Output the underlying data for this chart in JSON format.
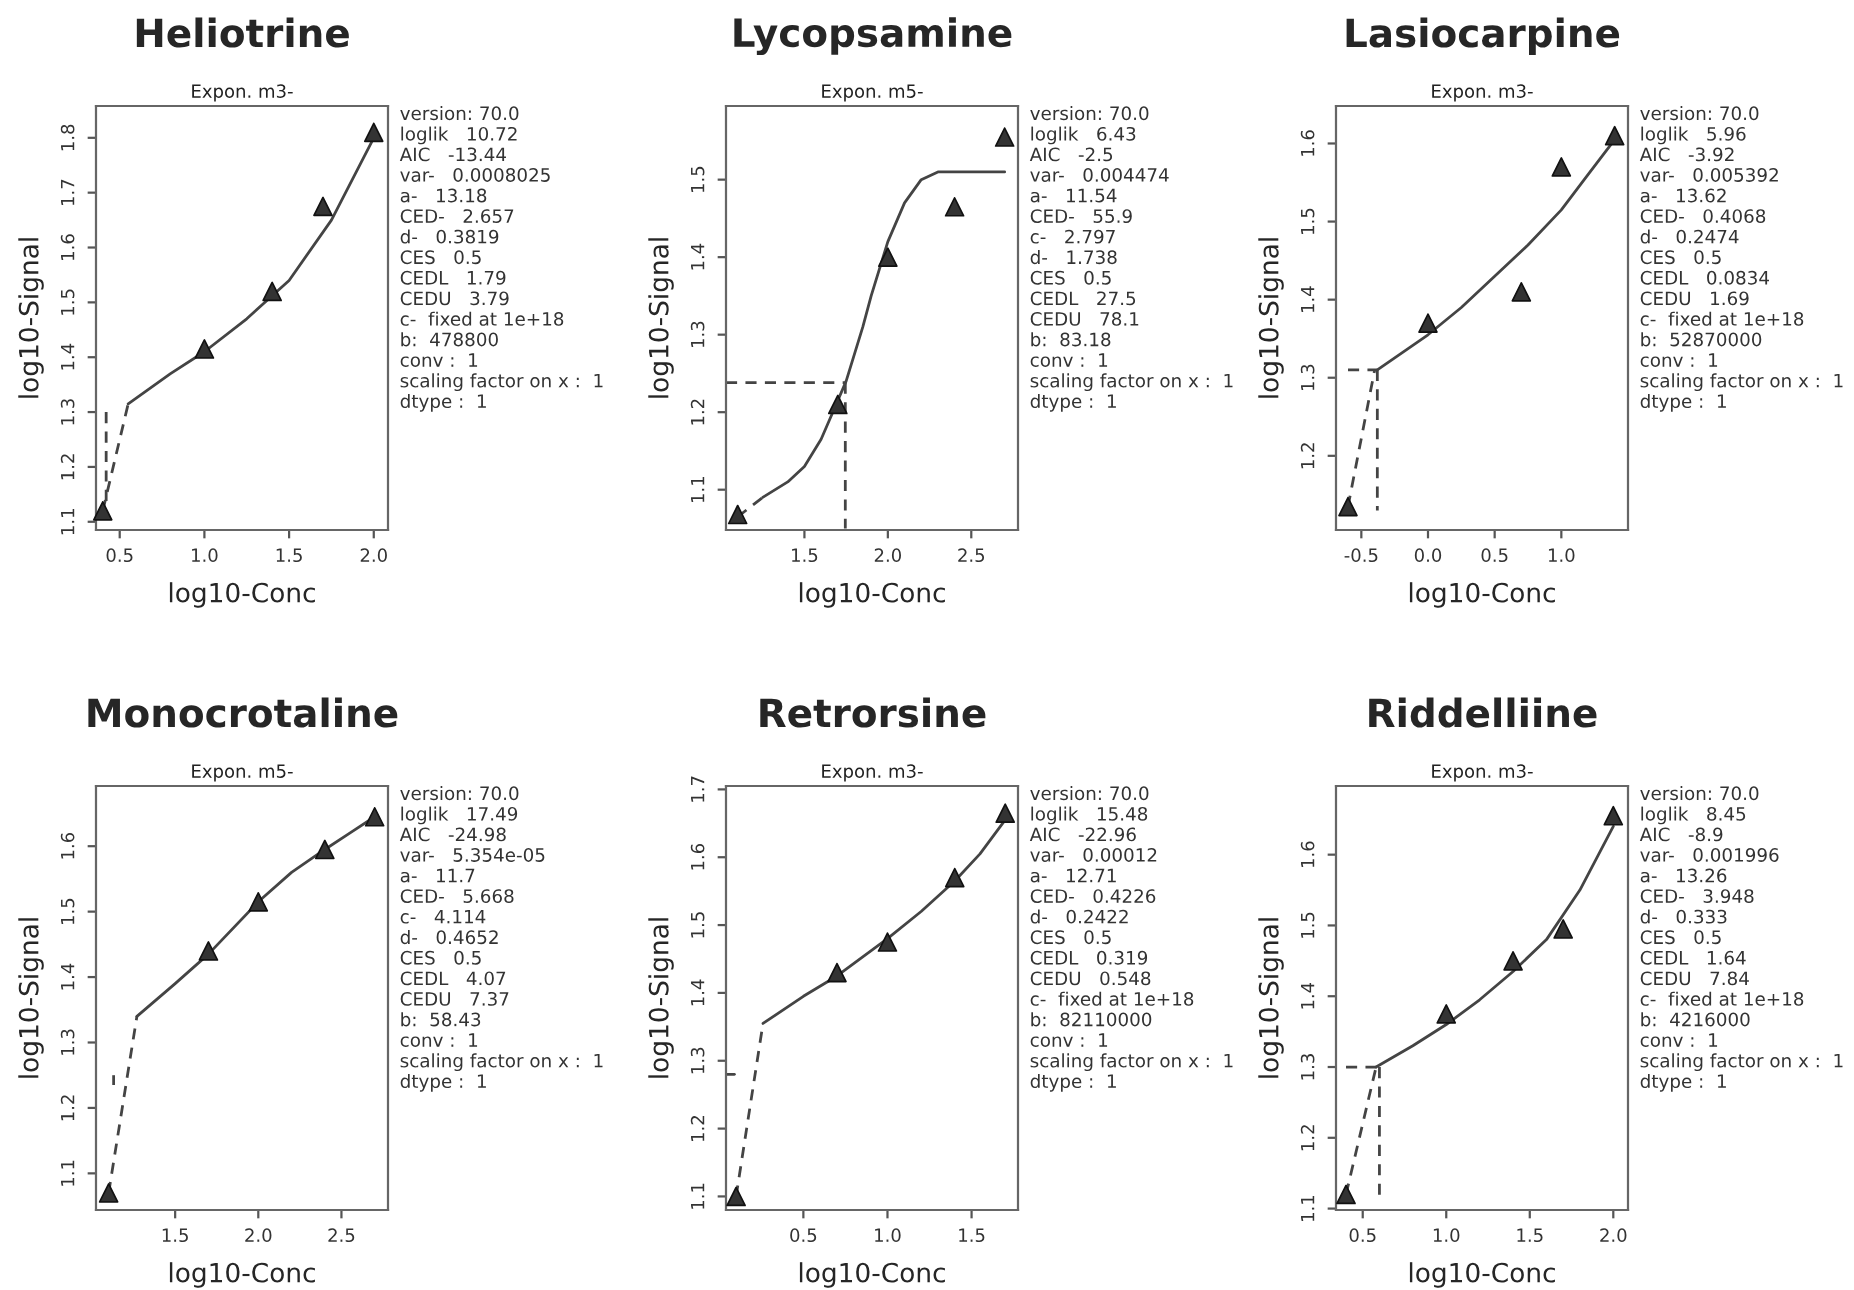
{
  "chart_data": [
    {
      "type": "scatter",
      "title": "Heliotrine",
      "subtitle": "Expon. m3-",
      "xlabel": "log10-Conc",
      "ylabel": "log10-Signal",
      "xlim": [
        0.36,
        2.084
      ],
      "ylim": [
        1.085,
        1.858
      ],
      "xticks": [
        0.5,
        {
          "value": 1,
          "label": "1.0"
        },
        1.5,
        {
          "value": 2,
          "label": "2.0"
        }
      ],
      "yticks": [
        1.1,
        1.2,
        1.3,
        1.4,
        1.5,
        1.6,
        1.7,
        1.8
      ],
      "grid": false,
      "series": [
        {
          "type": "scatter",
          "marker": "triangle",
          "color": "#333333",
          "x": [
            0.4,
            1.0,
            1.4,
            1.7,
            2.0
          ],
          "values": [
            1.12,
            1.415,
            1.52,
            1.675,
            1.81
          ]
        },
        {
          "type": "line",
          "line_style": "solid",
          "color": "#444444",
          "x": [
            0.55,
            0.8,
            1.0,
            1.25,
            1.5,
            1.75,
            2.0
          ],
          "values": [
            1.315,
            1.37,
            1.41,
            1.47,
            1.54,
            1.65,
            1.8
          ]
        },
        {
          "type": "line",
          "line_style": "dashed",
          "color": "#444444",
          "x": [
            0.4,
            0.55
          ],
          "values": [
            1.12,
            1.315
          ]
        },
        {
          "type": "line",
          "line_style": "dashed",
          "color": "#444444",
          "x": [
            0.42,
            0.42
          ],
          "values": [
            1.3,
            1.13
          ]
        }
      ],
      "annotations": [
        "version: 70.0",
        "loglik   10.72",
        "AIC   -13.44",
        "var-   0.0008025",
        "a-   13.18",
        "CED-   2.657",
        "d-   0.3819",
        "CES   0.5",
        "CEDL   1.79",
        "CEDU   3.79",
        "c-  fixed at 1e+18",
        "b:  478800",
        "conv :  1",
        "scaling factor on x :  1",
        "dtype :  1"
      ]
    },
    {
      "type": "scatter",
      "title": "Lycopsamine",
      "subtitle": "Expon. m5-",
      "xlabel": "log10-Conc",
      "ylabel": "log10-Signal",
      "xlim": [
        1.03,
        2.78
      ],
      "ylim": [
        1.048,
        1.595
      ],
      "xticks": [
        1.5,
        {
          "value": 2,
          "label": "2.0"
        },
        2.5
      ],
      "yticks": [
        1.1,
        1.2,
        1.3,
        1.4,
        1.5
      ],
      "grid": false,
      "series": [
        {
          "type": "scatter",
          "marker": "triangle",
          "color": "#333333",
          "x": [
            1.1,
            1.7,
            2.0,
            2.4,
            2.7
          ],
          "values": [
            1.068,
            1.21,
            1.4,
            1.465,
            1.555
          ]
        },
        {
          "type": "line",
          "line_style": "solid",
          "color": "#444444",
          "x": [
            1.25,
            1.4,
            1.5,
            1.6,
            1.65,
            1.75,
            1.85,
            1.9,
            2.0,
            2.1,
            2.2,
            2.3,
            2.4,
            2.7
          ],
          "values": [
            1.09,
            1.11,
            1.13,
            1.165,
            1.19,
            1.24,
            1.31,
            1.35,
            1.42,
            1.47,
            1.5,
            1.51,
            1.51,
            1.51
          ]
        },
        {
          "type": "line",
          "line_style": "dashed",
          "color": "#444444",
          "x": [
            1.1,
            1.25
          ],
          "values": [
            1.065,
            1.09
          ]
        },
        {
          "type": "line",
          "line_style": "dashed",
          "color": "#444444",
          "x": [
            1.03,
            1.745
          ],
          "values": [
            1.238,
            1.238
          ]
        },
        {
          "type": "line",
          "line_style": "dashed",
          "color": "#444444",
          "x": [
            1.745,
            1.745
          ],
          "values": [
            1.238,
            1.05
          ]
        }
      ],
      "annotations": [
        "version: 70.0",
        "loglik   6.43",
        "AIC   -2.5",
        "var-   0.004474",
        "a-   11.54",
        "CED-   55.9",
        "c-   2.797",
        "d-   1.738",
        "CES   0.5",
        "CEDL   27.5",
        "CEDU   78.1",
        "b:  83.18",
        "conv :  1",
        "scaling factor on x :  1",
        "dtype :  1"
      ]
    },
    {
      "type": "scatter",
      "title": "Lasiocarpine",
      "subtitle": "Expon. m3-",
      "xlabel": "log10-Conc",
      "ylabel": "log10-Signal",
      "xlim": [
        -0.69,
        1.5
      ],
      "ylim": [
        1.105,
        1.648
      ],
      "xticks": [
        -0.5,
        {
          "value": 0,
          "label": "0.0"
        },
        0.5,
        {
          "value": 1,
          "label": "1.0"
        }
      ],
      "yticks": [
        1.2,
        1.3,
        1.4,
        1.5,
        1.6
      ],
      "grid": false,
      "series": [
        {
          "type": "scatter",
          "marker": "triangle",
          "color": "#333333",
          "x": [
            -0.6,
            0.0,
            0.7,
            1.0,
            1.4
          ],
          "values": [
            1.135,
            1.37,
            1.41,
            1.57,
            1.61
          ]
        },
        {
          "type": "line",
          "line_style": "solid",
          "color": "#444444",
          "x": [
            -0.38,
            0.0,
            0.25,
            0.5,
            0.75,
            1.0,
            1.2,
            1.4
          ],
          "values": [
            1.31,
            1.355,
            1.39,
            1.43,
            1.47,
            1.515,
            1.56,
            1.605
          ]
        },
        {
          "type": "line",
          "line_style": "dashed",
          "color": "#444444",
          "x": [
            -0.6,
            -0.4
          ],
          "values": [
            1.135,
            1.31
          ]
        },
        {
          "type": "line",
          "line_style": "dashed",
          "color": "#444444",
          "x": [
            -0.6,
            -0.38
          ],
          "values": [
            1.31,
            1.31
          ]
        },
        {
          "type": "line",
          "line_style": "dashed",
          "color": "#444444",
          "x": [
            -0.38,
            -0.38
          ],
          "values": [
            1.31,
            1.13
          ]
        }
      ],
      "annotations": [
        "version: 70.0",
        "loglik   5.96",
        "AIC   -3.92",
        "var-   0.005392",
        "a-   13.62",
        "CED-   0.4068",
        "d-   0.2474",
        "CES   0.5",
        "CEDL   0.0834",
        "CEDU   1.69",
        "c-  fixed at 1e+18",
        "b:  52870000",
        "conv :  1",
        "scaling factor on x :  1",
        "dtype :  1"
      ]
    },
    {
      "type": "scatter",
      "title": "Monocrotaline",
      "subtitle": "Expon. m5-",
      "xlabel": "log10-Conc",
      "ylabel": "log10-Signal",
      "xlim": [
        1.024,
        2.78
      ],
      "ylim": [
        1.044,
        1.692
      ],
      "xticks": [
        1.5,
        {
          "value": 2,
          "label": "2.0"
        },
        2.5
      ],
      "yticks": [
        1.1,
        1.2,
        1.3,
        1.4,
        1.5,
        1.6
      ],
      "grid": false,
      "series": [
        {
          "type": "scatter",
          "marker": "triangle",
          "color": "#333333",
          "x": [
            1.1,
            1.7,
            2.0,
            2.4,
            2.7
          ],
          "values": [
            1.07,
            1.44,
            1.515,
            1.595,
            1.645
          ]
        },
        {
          "type": "line",
          "line_style": "solid",
          "color": "#444444",
          "x": [
            1.27,
            1.5,
            1.7,
            2.0,
            2.2,
            2.4,
            2.55,
            2.7
          ],
          "values": [
            1.34,
            1.39,
            1.435,
            1.515,
            1.56,
            1.595,
            1.62,
            1.645
          ]
        },
        {
          "type": "line",
          "line_style": "dashed",
          "color": "#444444",
          "x": [
            1.1,
            1.27
          ],
          "values": [
            1.07,
            1.34
          ]
        },
        {
          "type": "line",
          "line_style": "dashed",
          "color": "#444444",
          "x": [
            1.13,
            1.13
          ],
          "values": [
            1.235,
            1.25
          ]
        }
      ],
      "annotations": [
        "version: 70.0",
        "loglik   17.49",
        "AIC   -24.98",
        "var-   5.354e-05",
        "a-   11.7",
        "CED-   5.668",
        "c-   4.114",
        "d-   0.4652",
        "CES   0.5",
        "CEDL   4.07",
        "CEDU   7.37",
        "b:  58.43",
        "conv :  1",
        "scaling factor on x :  1",
        "dtype :  1"
      ]
    },
    {
      "type": "scatter",
      "title": "Retrorsine",
      "subtitle": "Expon. m3-",
      "xlabel": "log10-Conc",
      "ylabel": "log10-Signal",
      "xlim": [
        0.04,
        1.776
      ],
      "ylim": [
        1.08,
        1.705
      ],
      "xticks": [
        0.5,
        {
          "value": 1,
          "label": "1.0"
        },
        1.5
      ],
      "yticks": [
        1.1,
        1.2,
        1.3,
        1.4,
        1.5,
        1.6,
        1.7
      ],
      "grid": false,
      "series": [
        {
          "type": "scatter",
          "marker": "triangle",
          "color": "#333333",
          "x": [
            0.1,
            0.7,
            1.0,
            1.4,
            1.7
          ],
          "values": [
            1.1,
            1.43,
            1.475,
            1.57,
            1.665
          ]
        },
        {
          "type": "line",
          "line_style": "solid",
          "color": "#444444",
          "x": [
            0.26,
            0.5,
            0.7,
            1.0,
            1.2,
            1.4,
            1.55,
            1.7
          ],
          "values": [
            1.355,
            1.395,
            1.425,
            1.48,
            1.52,
            1.565,
            1.605,
            1.655
          ]
        },
        {
          "type": "line",
          "line_style": "dashed",
          "color": "#444444",
          "x": [
            0.1,
            0.26
          ],
          "values": [
            1.1,
            1.355
          ]
        },
        {
          "type": "line",
          "line_style": "solid",
          "color": "#444444",
          "x": [
            0.045,
            0.09
          ],
          "values": [
            1.28,
            1.28
          ]
        }
      ],
      "annotations": [
        "version: 70.0",
        "loglik   15.48",
        "AIC   -22.96",
        "var-   0.00012",
        "a-   12.71",
        "CED-   0.4226",
        "d-   0.2422",
        "CES   0.5",
        "CEDL   0.319",
        "CEDU   0.548",
        "c-  fixed at 1e+18",
        "b:  82110000",
        "conv :  1",
        "scaling factor on x :  1",
        "dtype :  1"
      ]
    },
    {
      "type": "scatter",
      "title": "Riddelliine",
      "subtitle": "Expon. m3-",
      "xlabel": "log10-Conc",
      "ylabel": "log10-Signal",
      "xlim": [
        0.34,
        2.088
      ],
      "ylim": [
        1.098,
        1.697
      ],
      "xticks": [
        0.5,
        {
          "value": 1,
          "label": "1.0"
        },
        1.5,
        {
          "value": 2,
          "label": "2.0"
        }
      ],
      "yticks": [
        1.1,
        1.2,
        1.3,
        1.4,
        1.5,
        1.6
      ],
      "grid": false,
      "series": [
        {
          "type": "scatter",
          "marker": "triangle",
          "color": "#333333",
          "x": [
            0.4,
            1.0,
            1.4,
            1.7,
            2.0
          ],
          "values": [
            1.12,
            1.375,
            1.45,
            1.495,
            1.655
          ]
        },
        {
          "type": "line",
          "line_style": "solid",
          "color": "#444444",
          "x": [
            0.58,
            0.8,
            1.0,
            1.2,
            1.4,
            1.6,
            1.8,
            2.0
          ],
          "values": [
            1.3,
            1.33,
            1.36,
            1.395,
            1.435,
            1.48,
            1.55,
            1.64
          ]
        },
        {
          "type": "line",
          "line_style": "dashed",
          "color": "#444444",
          "x": [
            0.4,
            0.58
          ],
          "values": [
            1.12,
            1.3
          ]
        },
        {
          "type": "line",
          "line_style": "dashed",
          "color": "#444444",
          "x": [
            0.4,
            0.6
          ],
          "values": [
            1.3,
            1.3
          ]
        },
        {
          "type": "line",
          "line_style": "dashed",
          "color": "#444444",
          "x": [
            0.6,
            0.6
          ],
          "values": [
            1.3,
            1.115
          ]
        }
      ],
      "annotations": [
        "version: 70.0",
        "loglik   8.45",
        "AIC   -8.9",
        "var-   0.001996",
        "a-   13.26",
        "CED-   3.948",
        "d-   0.333",
        "CES   0.5",
        "CEDL   1.64",
        "CEDU   7.84",
        "c-  fixed at 1e+18",
        "b:  4216000",
        "conv :  1",
        "scaling factor on x :  1",
        "dtype :  1"
      ]
    }
  ]
}
